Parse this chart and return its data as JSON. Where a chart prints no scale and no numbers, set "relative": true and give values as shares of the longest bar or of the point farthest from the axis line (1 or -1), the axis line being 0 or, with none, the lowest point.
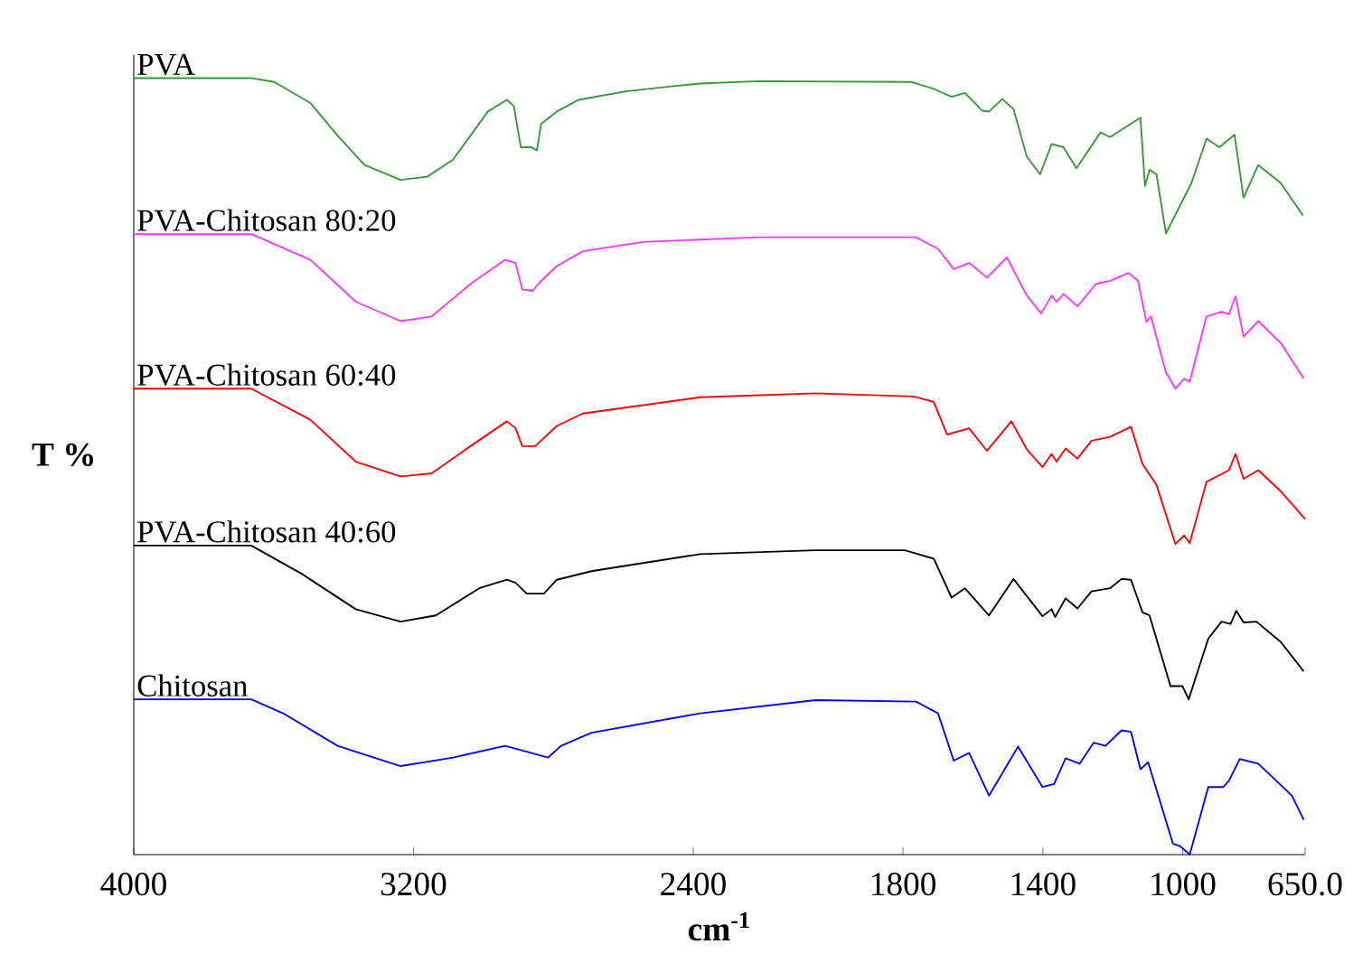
{
  "chart_data": {
    "type": "line",
    "xlabel": "cm$^{-1}$",
    "ylabel": "T %",
    "relative": true,
    "legend": false,
    "xlim": [
      4000,
      650
    ],
    "xticks": [
      4000,
      3200,
      2400,
      1800,
      1400,
      1000,
      {
        "value": 650,
        "label": "650.0"
      }
    ],
    "series": [
      {
        "name": "PVA",
        "color": "#339933",
        "x": [
          4000,
          3664,
          3598,
          3495,
          3417,
          3340,
          3237,
          3161,
          3087,
          2987,
          2933,
          2913,
          2893,
          2864,
          2847,
          2835,
          2790,
          2728,
          2593,
          2469,
          2380,
          2215,
          1776,
          1712,
          1661,
          1623,
          1573,
          1554,
          1516,
          1484,
          1446,
          1408,
          1375,
          1341,
          1304,
          1235,
          1208,
          1121,
          1108,
          1095,
          1075,
          1048,
          975,
          932,
          895,
          852,
          826,
          784,
          720,
          656
        ],
        "values": [
          1.0,
          1.0,
          0.995,
          0.968,
          0.926,
          0.888,
          0.869,
          0.873,
          0.895,
          0.957,
          0.972,
          0.964,
          0.911,
          0.911,
          0.907,
          0.941,
          0.957,
          0.972,
          0.983,
          0.989,
          0.993,
          0.996,
          0.995,
          0.986,
          0.976,
          0.981,
          0.958,
          0.957,
          0.973,
          0.96,
          0.899,
          0.876,
          0.915,
          0.911,
          0.884,
          0.93,
          0.924,
          0.949,
          0.861,
          0.882,
          0.876,
          0.8,
          0.865,
          0.922,
          0.911,
          0.927,
          0.846,
          0.888,
          0.865,
          0.823
        ]
      },
      {
        "name": "PVA-Chitosan 80:20",
        "color": "#ff33ff",
        "x": [
          4000,
          3664,
          3495,
          3365,
          3237,
          3148,
          3037,
          2938,
          2908,
          2889,
          2859,
          2839,
          2790,
          2716,
          2543,
          2380,
          2215,
          1763,
          1700,
          1655,
          1611,
          1560,
          1503,
          1446,
          1405,
          1375,
          1361,
          1341,
          1301,
          1248,
          1208,
          1155,
          1128,
          1104,
          1091,
          1048,
          1021,
          996,
          980,
          932,
          889,
          868,
          849,
          826,
          784,
          720,
          654
        ],
        "values": [
          0.799,
          0.799,
          0.766,
          0.712,
          0.687,
          0.693,
          0.735,
          0.766,
          0.762,
          0.728,
          0.726,
          0.737,
          0.758,
          0.777,
          0.789,
          0.792,
          0.795,
          0.795,
          0.78,
          0.754,
          0.762,
          0.743,
          0.769,
          0.72,
          0.697,
          0.72,
          0.712,
          0.722,
          0.706,
          0.735,
          0.739,
          0.749,
          0.739,
          0.686,
          0.693,
          0.621,
          0.6,
          0.613,
          0.609,
          0.693,
          0.699,
          0.696,
          0.719,
          0.667,
          0.687,
          0.659,
          0.613
        ]
      },
      {
        "name": "PVA-Chitosan 60:40",
        "color": "#ff0000",
        "x": [
          4000,
          3664,
          3495,
          3365,
          3237,
          3148,
          3037,
          2933,
          2908,
          2889,
          2852,
          2790,
          2716,
          2380,
          2050,
          1770,
          1712,
          1674,
          1611,
          1560,
          1490,
          1446,
          1401,
          1375,
          1361,
          1335,
          1301,
          1261,
          1208,
          1148,
          1115,
          1075,
          1021,
          996,
          980,
          932,
          868,
          849,
          826,
          784,
          720,
          650
        ],
        "values": [
          0.6,
          0.6,
          0.56,
          0.506,
          0.487,
          0.491,
          0.526,
          0.558,
          0.549,
          0.526,
          0.526,
          0.552,
          0.568,
          0.589,
          0.594,
          0.59,
          0.583,
          0.541,
          0.549,
          0.52,
          0.558,
          0.522,
          0.499,
          0.516,
          0.506,
          0.523,
          0.51,
          0.533,
          0.538,
          0.551,
          0.503,
          0.476,
          0.4,
          0.411,
          0.401,
          0.48,
          0.495,
          0.516,
          0.484,
          0.495,
          0.468,
          0.432
        ]
      },
      {
        "name": "PVA-Chitosan 40:60",
        "color": "#000000",
        "x": [
          4000,
          3664,
          3521,
          3365,
          3237,
          3136,
          3012,
          2933,
          2908,
          2876,
          2827,
          2790,
          2691,
          2380,
          2050,
          1795,
          1712,
          1661,
          1623,
          1554,
          1484,
          1401,
          1375,
          1365,
          1335,
          1301,
          1261,
          1208,
          1175,
          1148,
          1115,
          1095,
          1035,
          1001,
          983,
          927,
          889,
          863,
          847,
          826,
          789,
          720,
          654
        ],
        "values": [
          0.398,
          0.398,
          0.362,
          0.316,
          0.3,
          0.308,
          0.343,
          0.354,
          0.35,
          0.336,
          0.336,
          0.354,
          0.365,
          0.387,
          0.392,
          0.392,
          0.381,
          0.331,
          0.343,
          0.308,
          0.355,
          0.307,
          0.316,
          0.306,
          0.33,
          0.317,
          0.339,
          0.343,
          0.355,
          0.354,
          0.312,
          0.308,
          0.217,
          0.217,
          0.2,
          0.278,
          0.3,
          0.297,
          0.314,
          0.299,
          0.3,
          0.274,
          0.236
        ]
      },
      {
        "name": "Chitosan",
        "color": "#0000ff",
        "x": [
          4000,
          3664,
          3573,
          3417,
          3237,
          3087,
          2938,
          2864,
          2815,
          2778,
          2691,
          2380,
          2050,
          1763,
          1700,
          1655,
          1611,
          1554,
          1471,
          1401,
          1368,
          1335,
          1295,
          1255,
          1221,
          1175,
          1148,
          1121,
          1099,
          1028,
          1008,
          980,
          927,
          884,
          868,
          837,
          784,
          688,
          654
        ],
        "values": [
          0.2,
          0.2,
          0.182,
          0.14,
          0.114,
          0.125,
          0.14,
          0.131,
          0.125,
          0.14,
          0.157,
          0.182,
          0.199,
          0.197,
          0.182,
          0.121,
          0.131,
          0.076,
          0.139,
          0.087,
          0.091,
          0.124,
          0.117,
          0.144,
          0.14,
          0.16,
          0.158,
          0.11,
          0.119,
          0.014,
          0.011,
          0.0,
          0.087,
          0.087,
          0.095,
          0.123,
          0.117,
          0.076,
          0.045
        ]
      }
    ]
  }
}
